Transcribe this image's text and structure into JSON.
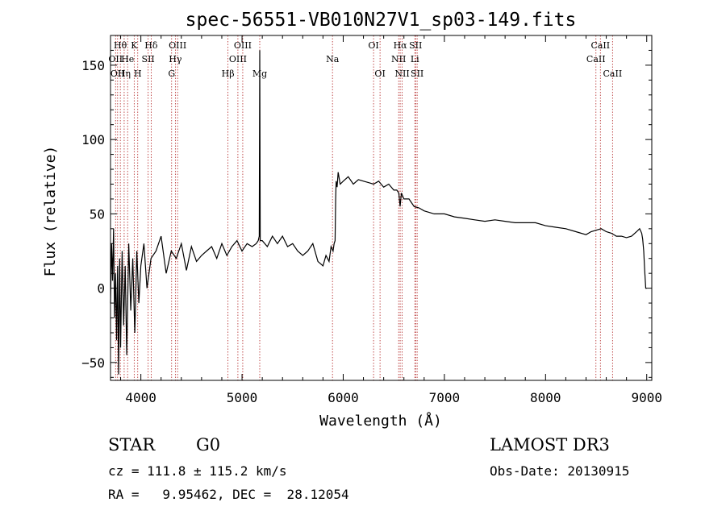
{
  "chart_data": {
    "type": "line",
    "title": "spec-56551-VB010N27V1_sp03-149.fits",
    "xlabel": "Wavelength (Å)",
    "ylabel": "Flux (relative)",
    "xlim": [
      3700,
      9050
    ],
    "ylim": [
      -62,
      170
    ],
    "xticks": [
      4000,
      5000,
      6000,
      7000,
      8000,
      9000
    ],
    "xtick_labels": [
      "4000",
      "5000",
      "6000",
      "7000",
      "8000",
      "9000"
    ],
    "yticks": [
      -50,
      0,
      50,
      100,
      150
    ],
    "ytick_labels": [
      "−50",
      "0",
      "50",
      "100",
      "150"
    ],
    "line_color": "#000000",
    "marker_color": "#b22222",
    "series": [
      {
        "name": "flux",
        "x": [
          3700,
          3710,
          3720,
          3730,
          3740,
          3750,
          3760,
          3770,
          3780,
          3790,
          3800,
          3815,
          3830,
          3845,
          3860,
          3880,
          3900,
          3920,
          3940,
          3960,
          3980,
          4000,
          4030,
          4060,
          4100,
          4150,
          4200,
          4250,
          4300,
          4350,
          4400,
          4450,
          4500,
          4550,
          4600,
          4650,
          4700,
          4750,
          4800,
          4850,
          4900,
          4950,
          5000,
          5050,
          5100,
          5140,
          5160,
          5170,
          5175,
          5180,
          5200,
          5250,
          5300,
          5350,
          5400,
          5450,
          5500,
          5550,
          5600,
          5650,
          5700,
          5750,
          5800,
          5830,
          5860,
          5880,
          5900,
          5910,
          5920,
          5925,
          5930,
          5940,
          5950,
          5970,
          6000,
          6050,
          6100,
          6150,
          6200,
          6250,
          6300,
          6350,
          6400,
          6450,
          6500,
          6530,
          6550,
          6562,
          6575,
          6600,
          6650,
          6700,
          6750,
          6800,
          6900,
          7000,
          7100,
          7200,
          7300,
          7400,
          7500,
          7600,
          7700,
          7800,
          7900,
          8000,
          8100,
          8200,
          8300,
          8400,
          8450,
          8500,
          8550,
          8600,
          8650,
          8700,
          8750,
          8800,
          8850,
          8900,
          8930,
          8950,
          8960,
          8970,
          8980,
          8990,
          9000
        ],
        "y": [
          -10,
          30,
          5,
          40,
          -20,
          10,
          -35,
          15,
          -58,
          20,
          -40,
          25,
          -25,
          15,
          -45,
          30,
          -15,
          20,
          -30,
          25,
          -10,
          15,
          30,
          0,
          20,
          25,
          35,
          10,
          25,
          20,
          30,
          12,
          28,
          18,
          22,
          25,
          28,
          20,
          30,
          22,
          28,
          32,
          25,
          30,
          28,
          30,
          32,
          35,
          160,
          32,
          32,
          28,
          35,
          30,
          35,
          28,
          30,
          25,
          22,
          25,
          30,
          18,
          15,
          22,
          18,
          28,
          25,
          30,
          32,
          60,
          72,
          68,
          78,
          70,
          72,
          75,
          70,
          73,
          72,
          71,
          70,
          72,
          68,
          70,
          66,
          66,
          64,
          55,
          64,
          60,
          60,
          55,
          54,
          52,
          50,
          50,
          48,
          47,
          46,
          45,
          46,
          45,
          44,
          44,
          44,
          42,
          41,
          40,
          38,
          36,
          38,
          39,
          40,
          38,
          37,
          35,
          35,
          34,
          35,
          38,
          40,
          37,
          33,
          25,
          12,
          0,
          0
        ]
      }
    ],
    "lines": [
      {
        "wl": 3750,
        "label": "OII",
        "row": 1
      },
      {
        "wl": 3770,
        "label": "OII",
        "row": 2
      },
      {
        "wl": 3797,
        "label": "Hθ",
        "row": 0
      },
      {
        "wl": 3835,
        "label": "Hη",
        "row": 2
      },
      {
        "wl": 3869,
        "label": "He",
        "row": 1
      },
      {
        "wl": 3934,
        "label": "K",
        "row": 0
      },
      {
        "wl": 3969,
        "label": "H",
        "row": 2
      },
      {
        "wl": 4072,
        "label": "SII",
        "row": 1
      },
      {
        "wl": 4102,
        "label": "Hδ",
        "row": 0
      },
      {
        "wl": 4304,
        "label": "G",
        "row": 2
      },
      {
        "wl": 4341,
        "label": "Hγ",
        "row": 1
      },
      {
        "wl": 4363,
        "label": "OIII",
        "row": 0
      },
      {
        "wl": 4861,
        "label": "Hβ",
        "row": 2
      },
      {
        "wl": 4959,
        "label": "OIII",
        "row": 1
      },
      {
        "wl": 5007,
        "label": "OIII",
        "row": 0
      },
      {
        "wl": 5175,
        "label": "Mg",
        "row": 2
      },
      {
        "wl": 5894,
        "label": "Na",
        "row": 1
      },
      {
        "wl": 6300,
        "label": "OI",
        "row": 0
      },
      {
        "wl": 6364,
        "label": "OI",
        "row": 2
      },
      {
        "wl": 6548,
        "label": "NII",
        "row": 1
      },
      {
        "wl": 6563,
        "label": "Hα",
        "row": 0
      },
      {
        "wl": 6583,
        "label": "NII",
        "row": 2
      },
      {
        "wl": 6708,
        "label": "Li",
        "row": 1
      },
      {
        "wl": 6716,
        "label": "SII",
        "row": 0
      },
      {
        "wl": 6731,
        "label": "SII",
        "row": 2
      },
      {
        "wl": 8498,
        "label": "CaII",
        "row": 1
      },
      {
        "wl": 8542,
        "label": "CaII",
        "row": 0
      },
      {
        "wl": 8662,
        "label": "CaII",
        "row": 2
      }
    ]
  },
  "info": {
    "class_label": "STAR",
    "subclass": "G0",
    "cz": "cz = 111.8 ± 115.2 km/s",
    "coords": "RA =   9.95462, DEC =  28.12054",
    "survey": "LAMOST DR3",
    "obs_date": "Obs-Date: 20130915"
  }
}
